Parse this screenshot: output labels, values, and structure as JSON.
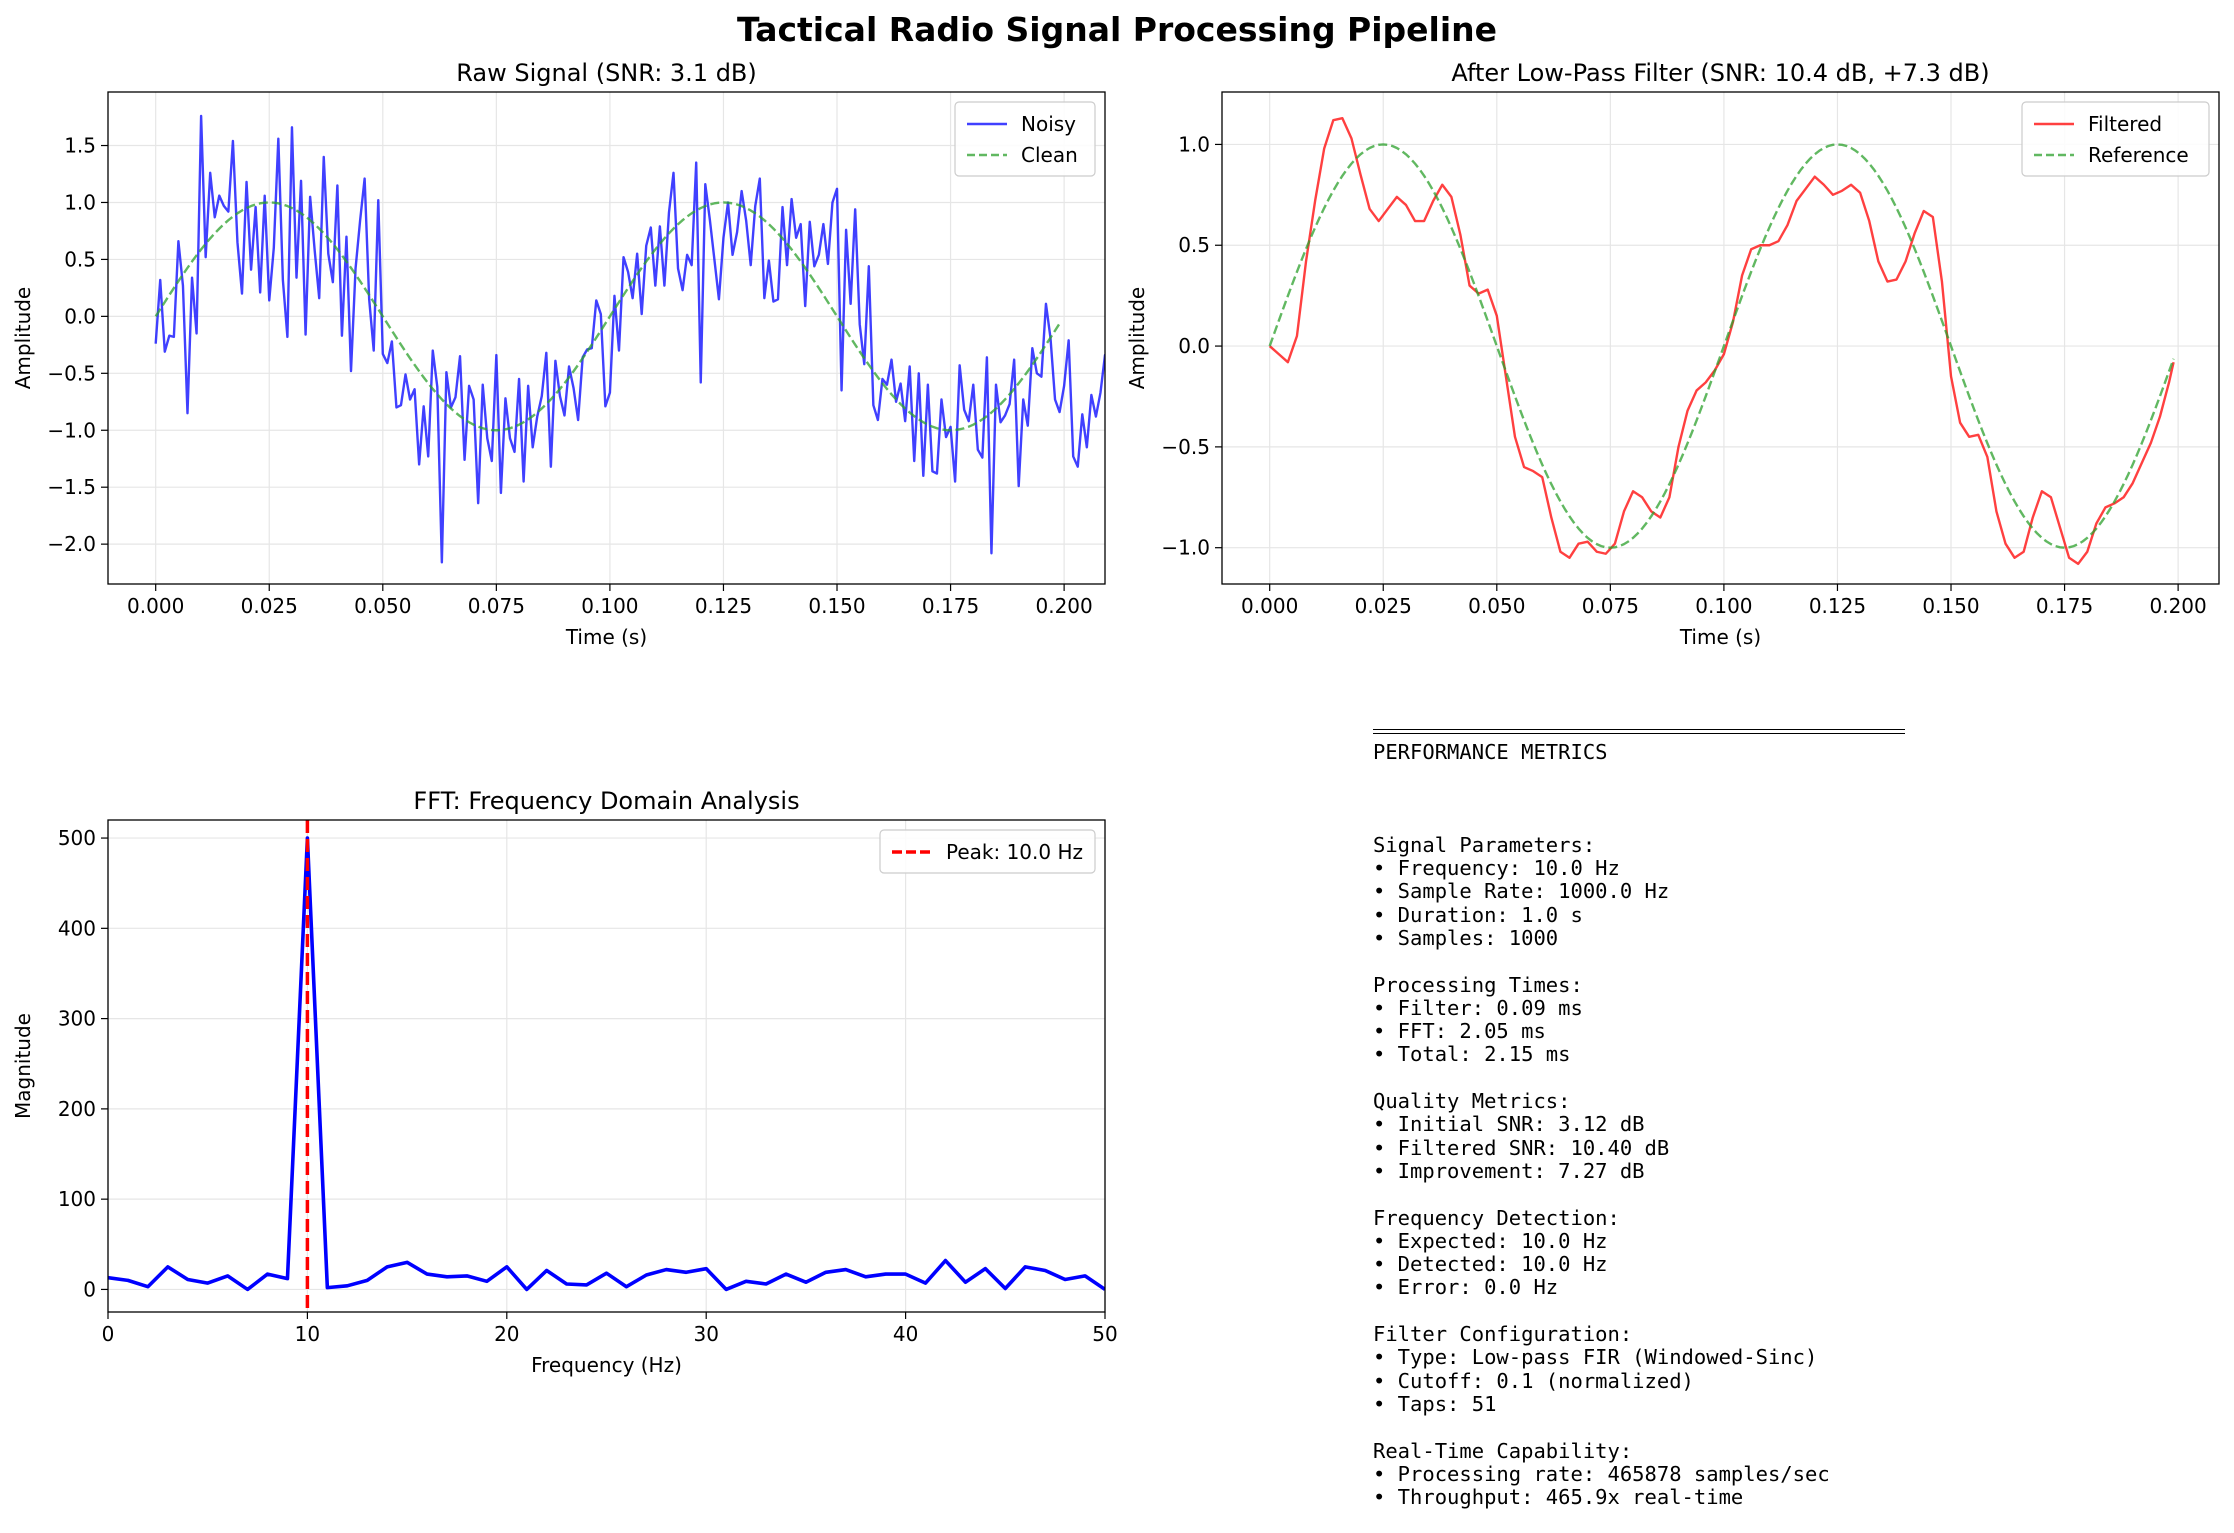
{
  "figure": {
    "suptitle": "Tactical Radio Signal Processing Pipeline"
  },
  "chart_data": [
    {
      "id": "raw",
      "type": "line",
      "title": "Raw Signal (SNR: 3.1 dB)",
      "xlabel": "Time (s)",
      "ylabel": "Amplitude",
      "xlim": [
        -0.0105,
        0.209
      ],
      "ylim": [
        -2.35,
        1.97
      ],
      "xticks": [
        0.0,
        0.025,
        0.05,
        0.075,
        0.1,
        0.125,
        0.15,
        0.175,
        0.2
      ],
      "xtick_labels": [
        "0.000",
        "0.025",
        "0.050",
        "0.075",
        "0.100",
        "0.125",
        "0.150",
        "0.175",
        "0.200"
      ],
      "yticks": [
        -2.0,
        -1.5,
        -1.0,
        -0.5,
        0.0,
        0.5,
        1.0,
        1.5
      ],
      "ytick_labels": [
        "−2.0",
        "−1.5",
        "−1.0",
        "−0.5",
        "0.0",
        "0.5",
        "1.0",
        "1.5"
      ],
      "grid": true,
      "legend": "top-right",
      "series": [
        {
          "name": "Noisy",
          "color": "#0000ff",
          "style": "solid",
          "x_start": 0.0,
          "x_step": 0.001,
          "values": [
            -0.24,
            0.32,
            -0.31,
            -0.17,
            -0.18,
            0.66,
            0.27,
            -0.85,
            0.34,
            -0.15,
            1.76,
            0.52,
            1.26,
            0.87,
            1.06,
            0.97,
            0.92,
            1.54,
            0.65,
            0.2,
            1.18,
            0.41,
            0.96,
            0.21,
            1.06,
            0.14,
            0.6,
            1.56,
            0.32,
            -0.18,
            1.66,
            0.34,
            1.19,
            -0.16,
            1.05,
            0.58,
            0.16,
            1.4,
            0.55,
            0.3,
            1.15,
            -0.17,
            0.7,
            -0.48,
            0.42,
            0.84,
            1.21,
            0.15,
            -0.3,
            1.02,
            -0.33,
            -0.41,
            -0.22,
            -0.8,
            -0.78,
            -0.51,
            -0.73,
            -0.64,
            -1.3,
            -0.79,
            -1.23,
            -0.3,
            -0.62,
            -2.16,
            -0.49,
            -0.8,
            -0.71,
            -0.35,
            -1.26,
            -0.61,
            -0.73,
            -1.64,
            -0.6,
            -1.07,
            -1.27,
            -0.34,
            -1.55,
            -0.72,
            -1.07,
            -1.19,
            -0.55,
            -1.45,
            -0.61,
            -1.15,
            -0.88,
            -0.7,
            -0.32,
            -1.32,
            -0.39,
            -0.7,
            -0.87,
            -0.44,
            -0.63,
            -0.91,
            -0.36,
            -0.29,
            -0.28,
            0.14,
            0.02,
            -0.79,
            -0.67,
            0.18,
            -0.3,
            0.52,
            0.39,
            0.16,
            0.55,
            0.02,
            0.62,
            0.78,
            0.27,
            0.79,
            0.27,
            0.91,
            1.26,
            0.42,
            0.23,
            0.54,
            0.45,
            1.35,
            -0.58,
            1.16,
            0.85,
            0.5,
            0.15,
            0.69,
            1.0,
            0.54,
            0.74,
            1.1,
            0.84,
            0.45,
            0.97,
            1.21,
            0.16,
            0.49,
            0.13,
            0.15,
            0.96,
            0.45,
            1.03,
            0.69,
            0.81,
            0.09,
            0.83,
            0.44,
            0.54,
            0.81,
            0.46,
            1.0,
            1.12,
            -0.65,
            0.76,
            0.11,
            0.94,
            -0.07,
            -0.42,
            0.44,
            -0.78,
            -0.91,
            -0.55,
            -0.6,
            -0.38,
            -0.75,
            -0.59,
            -0.92,
            -0.44,
            -1.27,
            -0.5,
            -1.4,
            -0.6,
            -1.36,
            -1.38,
            -0.73,
            -1.06,
            -0.97,
            -1.45,
            -0.43,
            -0.82,
            -0.92,
            -0.6,
            -1.17,
            -1.24,
            -0.36,
            -2.08,
            -0.6,
            -0.93,
            -0.87,
            -0.77,
            -0.38,
            -1.49,
            -0.73,
            -0.96,
            -0.28,
            -0.5,
            -0.53,
            0.11,
            -0.19,
            -0.73,
            -0.84,
            -0.61,
            -0.21,
            -1.23,
            -1.32,
            -0.86,
            -1.15,
            -0.69,
            -0.88,
            -0.67,
            -0.34,
            -0.79,
            -0.44,
            -0.21,
            0.1,
            0.0,
            -0.67
          ]
        },
        {
          "name": "Clean",
          "color": "#2ca02c",
          "style": "dashed",
          "x_start": 0.0,
          "x_step": 0.001,
          "expr": "sin(2*pi*10*t)",
          "count": 200
        }
      ]
    },
    {
      "id": "filtered",
      "type": "line",
      "title": "After Low-Pass Filter (SNR: 10.4 dB, +7.3 dB)",
      "xlabel": "Time (s)",
      "ylabel": "Amplitude",
      "xlim": [
        -0.0105,
        0.209
      ],
      "ylim": [
        -1.18,
        1.26
      ],
      "xticks": [
        0.0,
        0.025,
        0.05,
        0.075,
        0.1,
        0.125,
        0.15,
        0.175,
        0.2
      ],
      "xtick_labels": [
        "0.000",
        "0.025",
        "0.050",
        "0.075",
        "0.100",
        "0.125",
        "0.150",
        "0.175",
        "0.200"
      ],
      "yticks": [
        -1.0,
        -0.5,
        0.0,
        0.5,
        1.0
      ],
      "ytick_labels": [
        "−1.0",
        "−0.5",
        "0.0",
        "0.5",
        "1.0"
      ],
      "grid": true,
      "legend": "top-right",
      "series": [
        {
          "name": "Filtered",
          "color": "#ff0000",
          "style": "solid",
          "points": [
            [
              0.0,
              0.0
            ],
            [
              0.002,
              -0.04
            ],
            [
              0.004,
              -0.08
            ],
            [
              0.006,
              0.05
            ],
            [
              0.008,
              0.42
            ],
            [
              0.01,
              0.72
            ],
            [
              0.012,
              0.98
            ],
            [
              0.014,
              1.12
            ],
            [
              0.016,
              1.13
            ],
            [
              0.018,
              1.03
            ],
            [
              0.02,
              0.85
            ],
            [
              0.022,
              0.68
            ],
            [
              0.024,
              0.62
            ],
            [
              0.026,
              0.68
            ],
            [
              0.028,
              0.74
            ],
            [
              0.03,
              0.7
            ],
            [
              0.032,
              0.62
            ],
            [
              0.034,
              0.62
            ],
            [
              0.036,
              0.72
            ],
            [
              0.038,
              0.8
            ],
            [
              0.04,
              0.74
            ],
            [
              0.042,
              0.55
            ],
            [
              0.044,
              0.3
            ],
            [
              0.046,
              0.26
            ],
            [
              0.048,
              0.28
            ],
            [
              0.05,
              0.15
            ],
            [
              0.052,
              -0.15
            ],
            [
              0.054,
              -0.45
            ],
            [
              0.056,
              -0.6
            ],
            [
              0.058,
              -0.62
            ],
            [
              0.06,
              -0.65
            ],
            [
              0.062,
              -0.85
            ],
            [
              0.064,
              -1.02
            ],
            [
              0.066,
              -1.05
            ],
            [
              0.068,
              -0.98
            ],
            [
              0.07,
              -0.97
            ],
            [
              0.072,
              -1.02
            ],
            [
              0.074,
              -1.03
            ],
            [
              0.076,
              -0.98
            ],
            [
              0.078,
              -0.82
            ],
            [
              0.08,
              -0.72
            ],
            [
              0.082,
              -0.75
            ],
            [
              0.084,
              -0.82
            ],
            [
              0.086,
              -0.85
            ],
            [
              0.088,
              -0.75
            ],
            [
              0.09,
              -0.5
            ],
            [
              0.092,
              -0.32
            ],
            [
              0.094,
              -0.22
            ],
            [
              0.096,
              -0.18
            ],
            [
              0.098,
              -0.12
            ],
            [
              0.1,
              -0.04
            ],
            [
              0.102,
              0.12
            ],
            [
              0.104,
              0.35
            ],
            [
              0.106,
              0.48
            ],
            [
              0.108,
              0.5
            ],
            [
              0.11,
              0.5
            ],
            [
              0.112,
              0.52
            ],
            [
              0.114,
              0.6
            ],
            [
              0.116,
              0.72
            ],
            [
              0.118,
              0.78
            ],
            [
              0.12,
              0.84
            ],
            [
              0.122,
              0.8
            ],
            [
              0.124,
              0.75
            ],
            [
              0.126,
              0.77
            ],
            [
              0.128,
              0.8
            ],
            [
              0.13,
              0.76
            ],
            [
              0.132,
              0.62
            ],
            [
              0.134,
              0.42
            ],
            [
              0.136,
              0.32
            ],
            [
              0.138,
              0.33
            ],
            [
              0.14,
              0.42
            ],
            [
              0.142,
              0.56
            ],
            [
              0.144,
              0.67
            ],
            [
              0.146,
              0.64
            ],
            [
              0.148,
              0.32
            ],
            [
              0.15,
              -0.15
            ],
            [
              0.152,
              -0.38
            ],
            [
              0.154,
              -0.45
            ],
            [
              0.156,
              -0.44
            ],
            [
              0.158,
              -0.55
            ],
            [
              0.16,
              -0.82
            ],
            [
              0.162,
              -0.98
            ],
            [
              0.164,
              -1.05
            ],
            [
              0.166,
              -1.02
            ],
            [
              0.168,
              -0.85
            ],
            [
              0.17,
              -0.72
            ],
            [
              0.172,
              -0.75
            ],
            [
              0.174,
              -0.9
            ],
            [
              0.176,
              -1.05
            ],
            [
              0.178,
              -1.08
            ],
            [
              0.18,
              -1.02
            ],
            [
              0.182,
              -0.88
            ],
            [
              0.184,
              -0.8
            ],
            [
              0.186,
              -0.78
            ],
            [
              0.188,
              -0.75
            ],
            [
              0.19,
              -0.68
            ],
            [
              0.192,
              -0.58
            ],
            [
              0.194,
              -0.48
            ],
            [
              0.196,
              -0.35
            ],
            [
              0.198,
              -0.18
            ],
            [
              0.199,
              -0.08
            ]
          ]
        },
        {
          "name": "Reference",
          "color": "#2ca02c",
          "style": "dashed",
          "x_start": 0.0,
          "x_step": 0.001,
          "expr": "sin(2*pi*10*t)",
          "count": 200
        }
      ]
    },
    {
      "id": "fft",
      "type": "line",
      "title": "FFT: Frequency Domain Analysis",
      "xlabel": "Frequency (Hz)",
      "ylabel": "Magnitude",
      "xlim": [
        0,
        50
      ],
      "ylim": [
        -25,
        520
      ],
      "xticks": [
        0,
        10,
        20,
        30,
        40,
        50
      ],
      "xtick_labels": [
        "0",
        "10",
        "20",
        "30",
        "40",
        "50"
      ],
      "yticks": [
        0,
        100,
        200,
        300,
        400,
        500
      ],
      "ytick_labels": [
        "0",
        "100",
        "200",
        "300",
        "400",
        "500"
      ],
      "grid": true,
      "legend": "top-right",
      "series": [
        {
          "name": "",
          "color": "#0000ff",
          "style": "solid",
          "x_start": 0,
          "x_step": 1,
          "values": [
            13,
            10,
            3,
            25,
            11,
            7,
            15,
            0,
            17,
            12,
            500,
            2,
            4,
            10,
            25,
            30,
            17,
            14,
            15,
            9,
            25,
            0,
            21,
            6,
            5,
            18,
            3,
            16,
            22,
            19,
            23,
            0,
            9,
            6,
            17,
            8,
            19,
            22,
            14,
            17,
            17,
            7,
            32,
            8,
            23,
            1,
            25,
            21,
            11,
            15,
            0
          ]
        },
        {
          "name": "Peak: 10.0 Hz",
          "color": "#ff0000",
          "style": "dashed",
          "vline": 10
        }
      ]
    }
  ],
  "metrics": {
    "header": "PERFORMANCE METRICS",
    "lines": [
      "",
      "Signal Parameters:",
      "• Frequency: 10.0 Hz",
      "• Sample Rate: 1000.0 Hz",
      "• Duration: 1.0 s",
      "• Samples: 1000",
      "",
      "Processing Times:",
      "• Filter: 0.09 ms",
      "• FFT: 2.05 ms",
      "• Total: 2.15 ms",
      "",
      "Quality Metrics:",
      "• Initial SNR: 3.12 dB",
      "• Filtered SNR: 10.40 dB",
      "• Improvement: 7.27 dB",
      "",
      "Frequency Detection:",
      "• Expected: 10.0 Hz",
      "• Detected: 10.0 Hz",
      "• Error: 0.0 Hz",
      "",
      "Filter Configuration:",
      "• Type: Low-pass FIR (Windowed-Sinc)",
      "• Cutoff: 0.1 (normalized)",
      "• Taps: 51",
      "",
      "Real-Time Capability:",
      "• Processing rate: 465878 samples/sec",
      "• Throughput: 465.9x real-time"
    ]
  }
}
